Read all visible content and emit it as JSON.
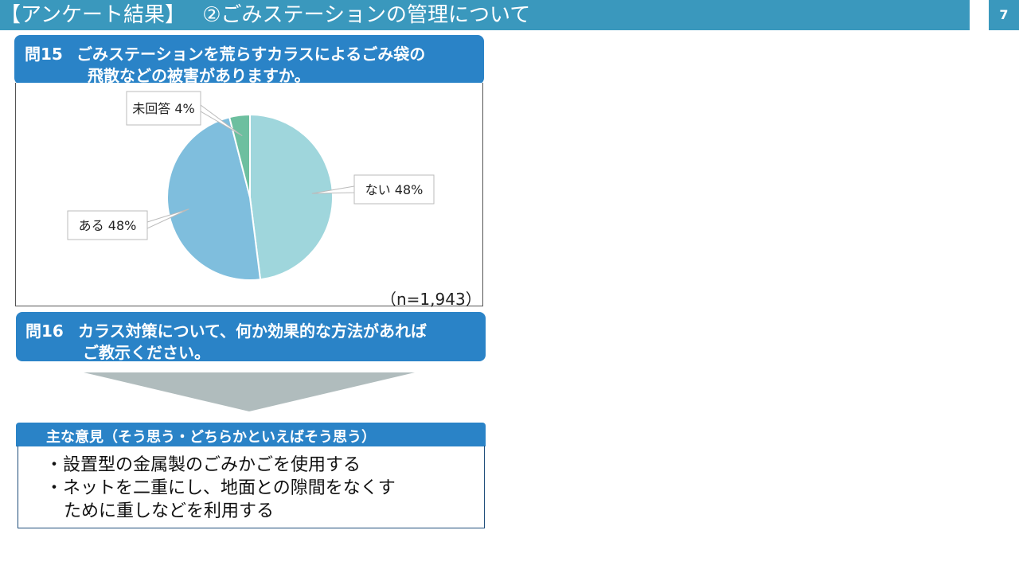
{
  "header": {
    "title": "【アンケート結果】　 ②ごみステーションの管理について",
    "page_number": "7",
    "color": "#3a98bd"
  },
  "q15": {
    "label": "問15",
    "line1": "ごみステーションを荒らすカラスによるごみ袋の",
    "line2": "飛散などの被害がありますか。"
  },
  "chart_data": {
    "type": "pie",
    "categories": [
      "ない",
      "ある",
      "未回答"
    ],
    "values": [
      48,
      48,
      4
    ],
    "data_labels": [
      "ない  48%",
      "ある  48%",
      "未回答  4%"
    ],
    "colors": [
      "#9fd6dc",
      "#7fbedd",
      "#6dbf9f"
    ],
    "start": "12 o'clock, clockwise",
    "sample_size": "（n=1,943）"
  },
  "q16": {
    "label": "問16",
    "line1": "カラス対策について、何か効果的な方法があれば",
    "line2": "ご教示ください。"
  },
  "opinions": {
    "heading": "主な意見（そう思う・どちらかといえばそう思う）",
    "items": [
      "・設置型の金属製のごみかごを使用する",
      "・ネットを二重にし、地面との隙間をなくす",
      "ために重しなどを利用する"
    ]
  },
  "colors": {
    "accent": "#2a83c7",
    "arrow": "#b0bcbd"
  }
}
